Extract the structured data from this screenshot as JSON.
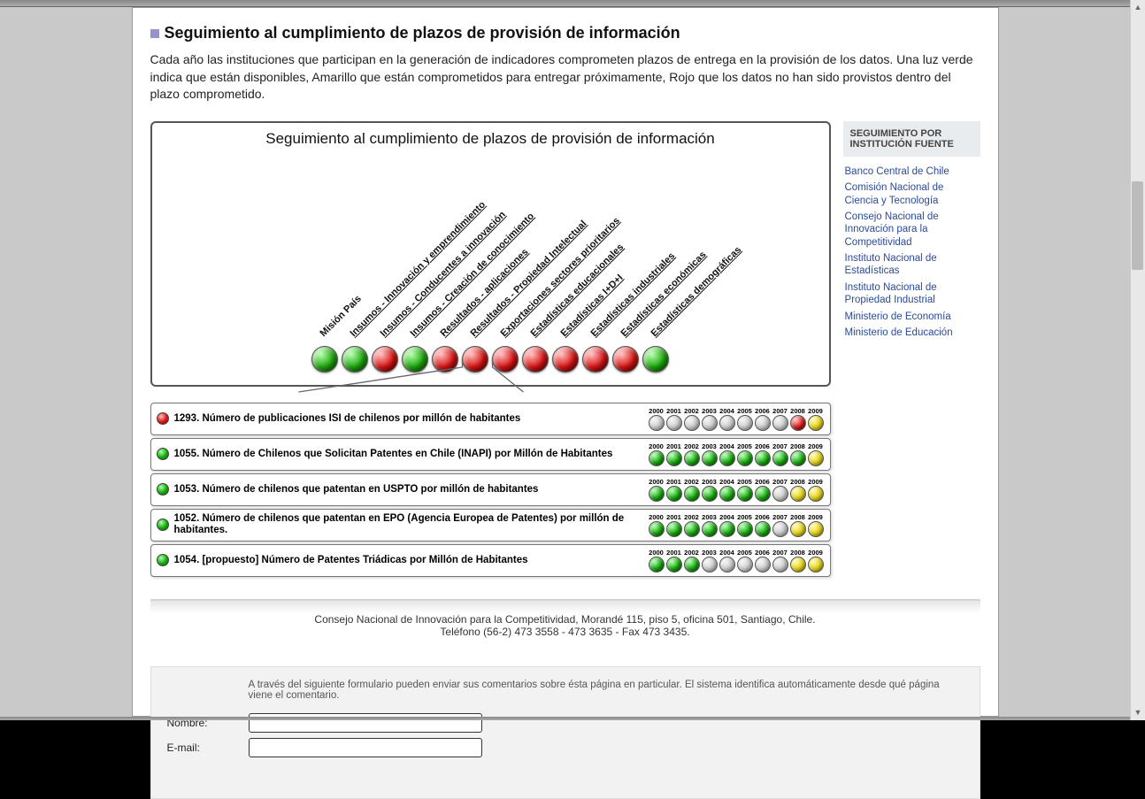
{
  "header": {
    "title": "Seguimiento al cumplimiento de plazos de provisión de información",
    "intro": "Cada año las instituciones que participan en la generación de indicadores comprometen plazos de entrega en la provisión de los datos. Una luz verde indica que están disponibles, Amarillo que están comprometidos para entregar próximamente, Rojo que los datos no han sido provistos dentro del plazo comprometido."
  },
  "chart": {
    "title": "Seguimiento al cumplimiento de plazos de provisión de información",
    "categories": [
      {
        "label": "Misión País",
        "color": "green",
        "underline": false
      },
      {
        "label": "Insumos - Innovación y emprendimiento",
        "color": "green",
        "underline": true
      },
      {
        "label": "Insumos - Conducentes a innovación",
        "color": "red",
        "underline": true
      },
      {
        "label": "Insumos - Creación de conocimiento",
        "color": "green",
        "underline": true
      },
      {
        "label": "Resultados - aplicaciones",
        "color": "red",
        "underline": true
      },
      {
        "label": "Resultados - Propiedad Intelectual",
        "color": "red",
        "underline": true
      },
      {
        "label": "Exportaciones sectores prioritarios",
        "color": "red",
        "underline": true
      },
      {
        "label": "Estadísticas educacionales",
        "color": "red",
        "underline": true
      },
      {
        "label": "Estadísticas I+D+I",
        "color": "red",
        "underline": true
      },
      {
        "label": "Estadísticas industriales",
        "color": "red",
        "underline": true
      },
      {
        "label": "Estadísticas económicas",
        "color": "red",
        "underline": true
      },
      {
        "label": "Estadísticas demográficas",
        "color": "green",
        "underline": true
      }
    ],
    "selected_index": 5
  },
  "years": [
    "2000",
    "2001",
    "2002",
    "2003",
    "2004",
    "2005",
    "2006",
    "2007",
    "2008",
    "2009"
  ],
  "indicators": [
    {
      "status": "red",
      "label": "1293. Número de publicaciones ISI de chilenos por millón de habitantes",
      "lights": [
        "gray",
        "gray",
        "gray",
        "gray",
        "gray",
        "gray",
        "gray",
        "gray",
        "red",
        "yellow"
      ]
    },
    {
      "status": "green",
      "label": "1055. Número de Chilenos que Solicitan Patentes en Chile (INAPI) por Millón de Habitantes",
      "lights": [
        "green",
        "green",
        "green",
        "green",
        "green",
        "green",
        "green",
        "green",
        "green",
        "yellow"
      ]
    },
    {
      "status": "green",
      "label": "1053. Número de chilenos que patentan en USPTO por millón de habitantes",
      "lights": [
        "green",
        "green",
        "green",
        "green",
        "green",
        "green",
        "green",
        "gray",
        "yellow",
        "yellow"
      ]
    },
    {
      "status": "green",
      "label": "1052. Número de chilenos que patentan en EPO (Agencia Europea de Patentes) por millón de habitantes.",
      "lights": [
        "green",
        "green",
        "green",
        "green",
        "green",
        "green",
        "green",
        "gray",
        "yellow",
        "yellow"
      ]
    },
    {
      "status": "green",
      "label": "1054. [propuesto] Número de Patentes Triádicas por Millón de Habitantes",
      "lights": [
        "green",
        "green",
        "green",
        "gray",
        "gray",
        "gray",
        "gray",
        "gray",
        "yellow",
        "yellow"
      ]
    }
  ],
  "sidebar": {
    "header": "SEGUIMIENTO POR INSTITUCIÓN FUENTE",
    "links": [
      "Banco Central de Chile",
      "Comisión Nacional de Ciencia y Tecnología",
      "Consejo Nacional de Innovación para la Competitividad",
      "Instituto Nacional de Estadísticas",
      "Instituto Nacional de Propiedad Industrial",
      "Ministerio de Economía",
      "Ministerio de Educación"
    ]
  },
  "footer": {
    "line1": "Consejo Nacional de Innovación para la Competitividad, Morandé 115, piso 5, oficina 501, Santiago, Chile.",
    "line2": "Teléfono (56-2) 473 3558 - 473 3635 - Fax 473 3435."
  },
  "comment_form": {
    "intro": "A través del siguiente formulario pueden enviar sus comentarios sobre ésta página en particular. El sistema identifica automáticamente desde qué página viene el comentario.",
    "name_label": "Nombre:",
    "email_label": "E-mail:"
  },
  "colors": {
    "green": "#1ea80e",
    "red": "#d81414",
    "yellow": "#e8d814",
    "gray": "#c8c8c8",
    "link": "#2a4a9a",
    "page_bg": "#c9c9c9",
    "sidebar_hdr_bg": "#e8ecef"
  }
}
